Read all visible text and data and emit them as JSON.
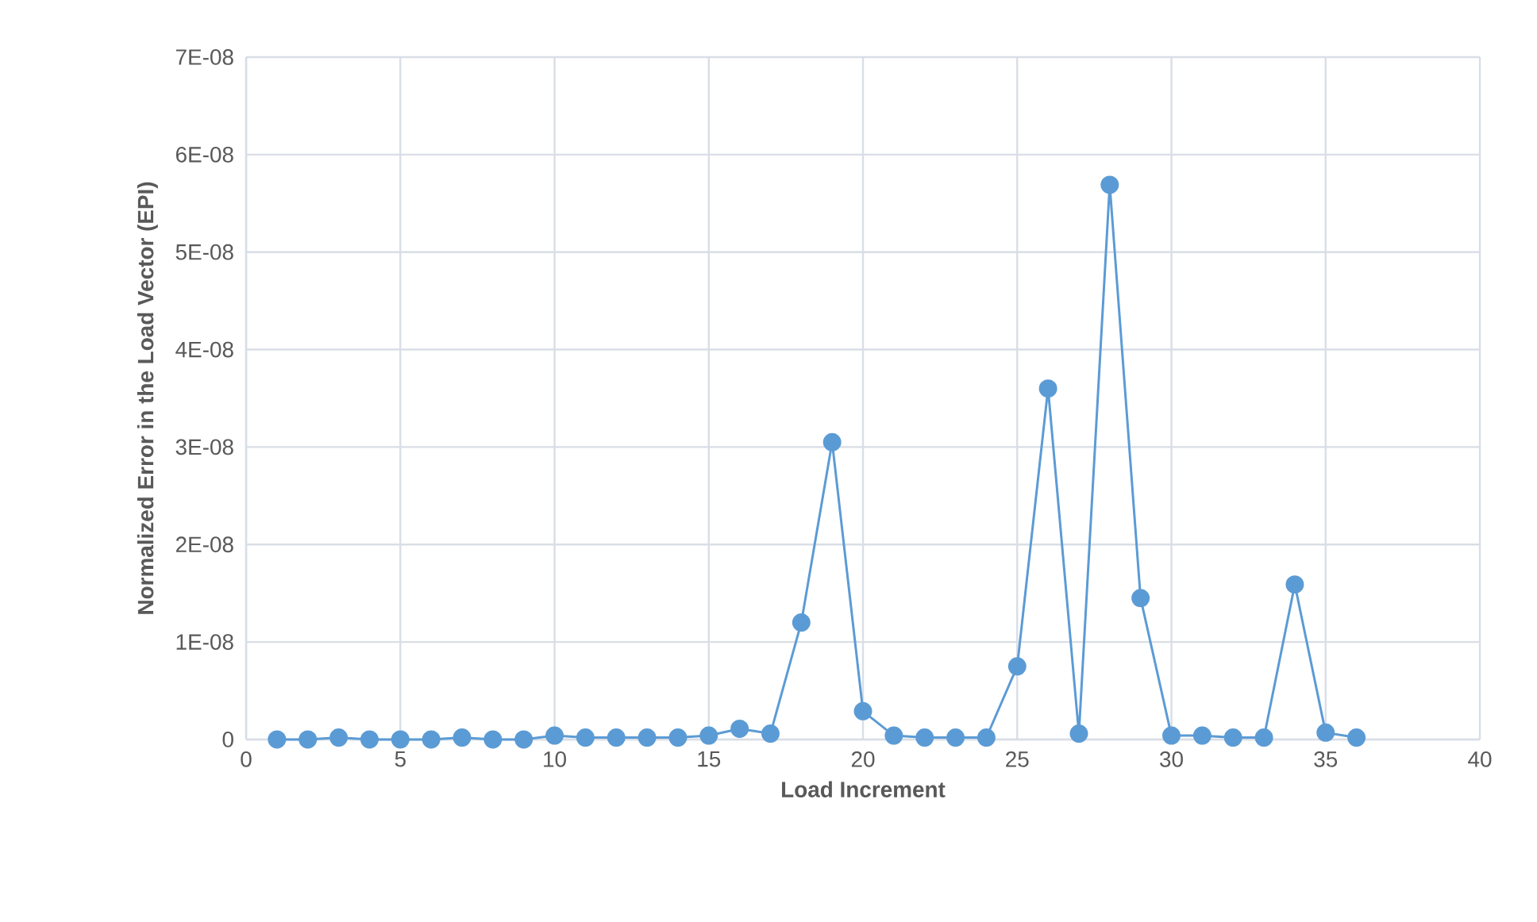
{
  "chart_data": {
    "type": "line",
    "xlabel": "Load Increment",
    "ylabel": "Normalized Error in the Load Vector (EPI)",
    "x": [
      1,
      2,
      3,
      4,
      5,
      6,
      7,
      8,
      9,
      10,
      11,
      12,
      13,
      14,
      15,
      16,
      17,
      18,
      19,
      20,
      21,
      22,
      23,
      24,
      25,
      26,
      27,
      28,
      29,
      30,
      31,
      32,
      33,
      34,
      35,
      36
    ],
    "series": [
      {
        "color": "#5b9bd5",
        "values": [
          0,
          0,
          2e-10,
          0,
          0,
          0,
          2e-10,
          0,
          0,
          4e-10,
          2e-10,
          2e-10,
          2e-10,
          2e-10,
          4e-10,
          1.1e-09,
          6e-10,
          1.2e-08,
          3.05e-08,
          2.9e-09,
          4e-10,
          2e-10,
          2e-10,
          2e-10,
          7.5e-09,
          3.6e-08,
          6e-10,
          5.69e-08,
          1.45e-08,
          4e-10,
          4e-10,
          2e-10,
          2e-10,
          1.59e-08,
          7e-10,
          2e-10
        ]
      }
    ],
    "xlim": [
      0,
      40
    ],
    "xticks": [
      0,
      5,
      10,
      15,
      20,
      25,
      30,
      35,
      40
    ],
    "ylim": [
      0,
      7e-08
    ],
    "yticks": [
      0,
      {
        "value": 1e-08,
        "label": "1E-08"
      },
      {
        "value": 2e-08,
        "label": "2E-08"
      },
      {
        "value": 3e-08,
        "label": "3E-08"
      },
      {
        "value": 4e-08,
        "label": "4E-08"
      },
      {
        "value": 5e-08,
        "label": "5E-08"
      },
      {
        "value": 6e-08,
        "label": "6E-08"
      },
      {
        "value": 7e-08,
        "label": "7E-08"
      }
    ],
    "grid": true,
    "marker": "circle",
    "line_style": "solid"
  }
}
